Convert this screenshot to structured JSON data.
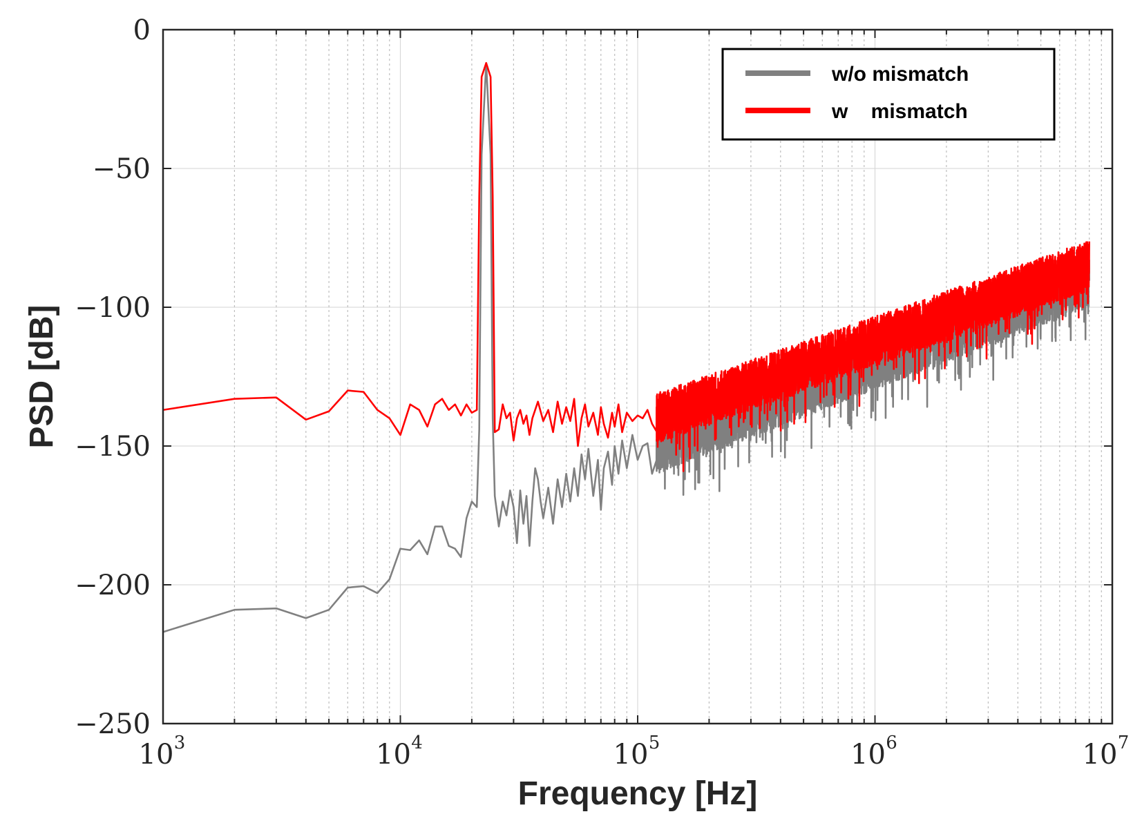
{
  "chart_data": {
    "type": "line",
    "xscale": "log",
    "xlabel": "Frequency [Hz]",
    "ylabel": "PSD [dB]",
    "xlim": [
      1000,
      10000000
    ],
    "ylim": [
      -250,
      0
    ],
    "grid": true,
    "legend_position": "top-right",
    "x_ticks": [
      {
        "base": "10",
        "exp": "3"
      },
      {
        "base": "10",
        "exp": "4"
      },
      {
        "base": "10",
        "exp": "5"
      },
      {
        "base": "10",
        "exp": "6"
      },
      {
        "base": "10",
        "exp": "7"
      }
    ],
    "y_ticks": [
      "0",
      "−50",
      "−100",
      "−150",
      "−200",
      "−250"
    ],
    "y_tick_values": [
      0,
      -50,
      -100,
      -150,
      -200,
      -250
    ],
    "series": [
      {
        "name": "w/o mismatch",
        "color": "#808080",
        "trend": {
          "x_start": 120000,
          "x_end": 8000000,
          "y_start": -150,
          "y_end": -90,
          "spread": 10,
          "seed": 7
        },
        "points": [
          [
            1000,
            -217
          ],
          [
            2000,
            -209
          ],
          [
            3000,
            -208.5
          ],
          [
            4000,
            -212
          ],
          [
            5000,
            -209
          ],
          [
            6000,
            -201
          ],
          [
            7000,
            -200.5
          ],
          [
            8000,
            -203
          ],
          [
            9000,
            -198
          ],
          [
            10000,
            -187
          ],
          [
            11000,
            -187.5
          ],
          [
            12000,
            -184
          ],
          [
            13000,
            -189
          ],
          [
            14000,
            -179
          ],
          [
            15000,
            -179
          ],
          [
            16000,
            -186
          ],
          [
            17000,
            -187
          ],
          [
            18000,
            -190
          ],
          [
            19000,
            -176
          ],
          [
            20000,
            -170
          ],
          [
            21000,
            -172
          ],
          [
            21500,
            -144
          ],
          [
            22000,
            -45
          ],
          [
            23000,
            -12
          ],
          [
            24000,
            -45
          ],
          [
            24500,
            -140
          ],
          [
            25000,
            -168
          ],
          [
            26000,
            -179
          ],
          [
            27000,
            -170
          ],
          [
            28000,
            -175
          ],
          [
            29000,
            -166
          ],
          [
            30000,
            -172
          ],
          [
            31000,
            -185
          ],
          [
            32000,
            -166
          ],
          [
            33000,
            -178
          ],
          [
            34000,
            -168
          ],
          [
            35000,
            -186
          ],
          [
            36000,
            -170
          ],
          [
            37000,
            -158
          ],
          [
            38000,
            -162
          ],
          [
            39000,
            -170
          ],
          [
            40000,
            -176
          ],
          [
            42000,
            -165
          ],
          [
            44000,
            -178
          ],
          [
            46000,
            -162
          ],
          [
            48000,
            -172
          ],
          [
            50000,
            -160
          ],
          [
            52000,
            -170
          ],
          [
            54000,
            -158
          ],
          [
            56000,
            -168
          ],
          [
            58000,
            -153
          ],
          [
            60000,
            -162
          ],
          [
            62000,
            -151
          ],
          [
            65000,
            -168
          ],
          [
            68000,
            -155
          ],
          [
            70000,
            -173
          ],
          [
            72000,
            -158
          ],
          [
            75000,
            -152
          ],
          [
            78000,
            -164
          ],
          [
            80000,
            -150
          ],
          [
            83000,
            -160
          ],
          [
            86000,
            -148
          ],
          [
            90000,
            -158
          ],
          [
            95000,
            -146
          ],
          [
            100000,
            -155
          ],
          [
            105000,
            -150
          ],
          [
            110000,
            -149
          ],
          [
            115000,
            -160
          ]
        ]
      },
      {
        "name": "w    mismatch",
        "color": "#ff0000",
        "trend": {
          "x_start": 120000,
          "x_end": 8000000,
          "y_start": -140,
          "y_end": -85,
          "spread": 9,
          "seed": 13
        },
        "points": [
          [
            1000,
            -137
          ],
          [
            2000,
            -133
          ],
          [
            3000,
            -132.5
          ],
          [
            4000,
            -140.5
          ],
          [
            5000,
            -137.5
          ],
          [
            6000,
            -130
          ],
          [
            7000,
            -130.5
          ],
          [
            8000,
            -137
          ],
          [
            9000,
            -140
          ],
          [
            10000,
            -146
          ],
          [
            11000,
            -135
          ],
          [
            12000,
            -137
          ],
          [
            13000,
            -143
          ],
          [
            14000,
            -135
          ],
          [
            15000,
            -133
          ],
          [
            16000,
            -137
          ],
          [
            17000,
            -135
          ],
          [
            18000,
            -139
          ],
          [
            19000,
            -135
          ],
          [
            20000,
            -138
          ],
          [
            21000,
            -137
          ],
          [
            21500,
            -60
          ],
          [
            22000,
            -17
          ],
          [
            23000,
            -12
          ],
          [
            24000,
            -17
          ],
          [
            24500,
            -60
          ],
          [
            25000,
            -145
          ],
          [
            26000,
            -144
          ],
          [
            27000,
            -135
          ],
          [
            28000,
            -140
          ],
          [
            29000,
            -138
          ],
          [
            30000,
            -148
          ],
          [
            31000,
            -140
          ],
          [
            32000,
            -137
          ],
          [
            33000,
            -142
          ],
          [
            34000,
            -139
          ],
          [
            35000,
            -146
          ],
          [
            36000,
            -140
          ],
          [
            38000,
            -134
          ],
          [
            40000,
            -141
          ],
          [
            42000,
            -137
          ],
          [
            44000,
            -145
          ],
          [
            46000,
            -134
          ],
          [
            48000,
            -142
          ],
          [
            50000,
            -136
          ],
          [
            52000,
            -141
          ],
          [
            54000,
            -133
          ],
          [
            56000,
            -150
          ],
          [
            58000,
            -140
          ],
          [
            60000,
            -135
          ],
          [
            62000,
            -143
          ],
          [
            65000,
            -138
          ],
          [
            68000,
            -146
          ],
          [
            70000,
            -136
          ],
          [
            72000,
            -142
          ],
          [
            75000,
            -147
          ],
          [
            78000,
            -138
          ],
          [
            80000,
            -143
          ],
          [
            83000,
            -135
          ],
          [
            86000,
            -145
          ],
          [
            90000,
            -138
          ],
          [
            95000,
            -141
          ],
          [
            100000,
            -139
          ],
          [
            105000,
            -140
          ],
          [
            110000,
            -137
          ],
          [
            115000,
            -142
          ]
        ]
      }
    ]
  }
}
